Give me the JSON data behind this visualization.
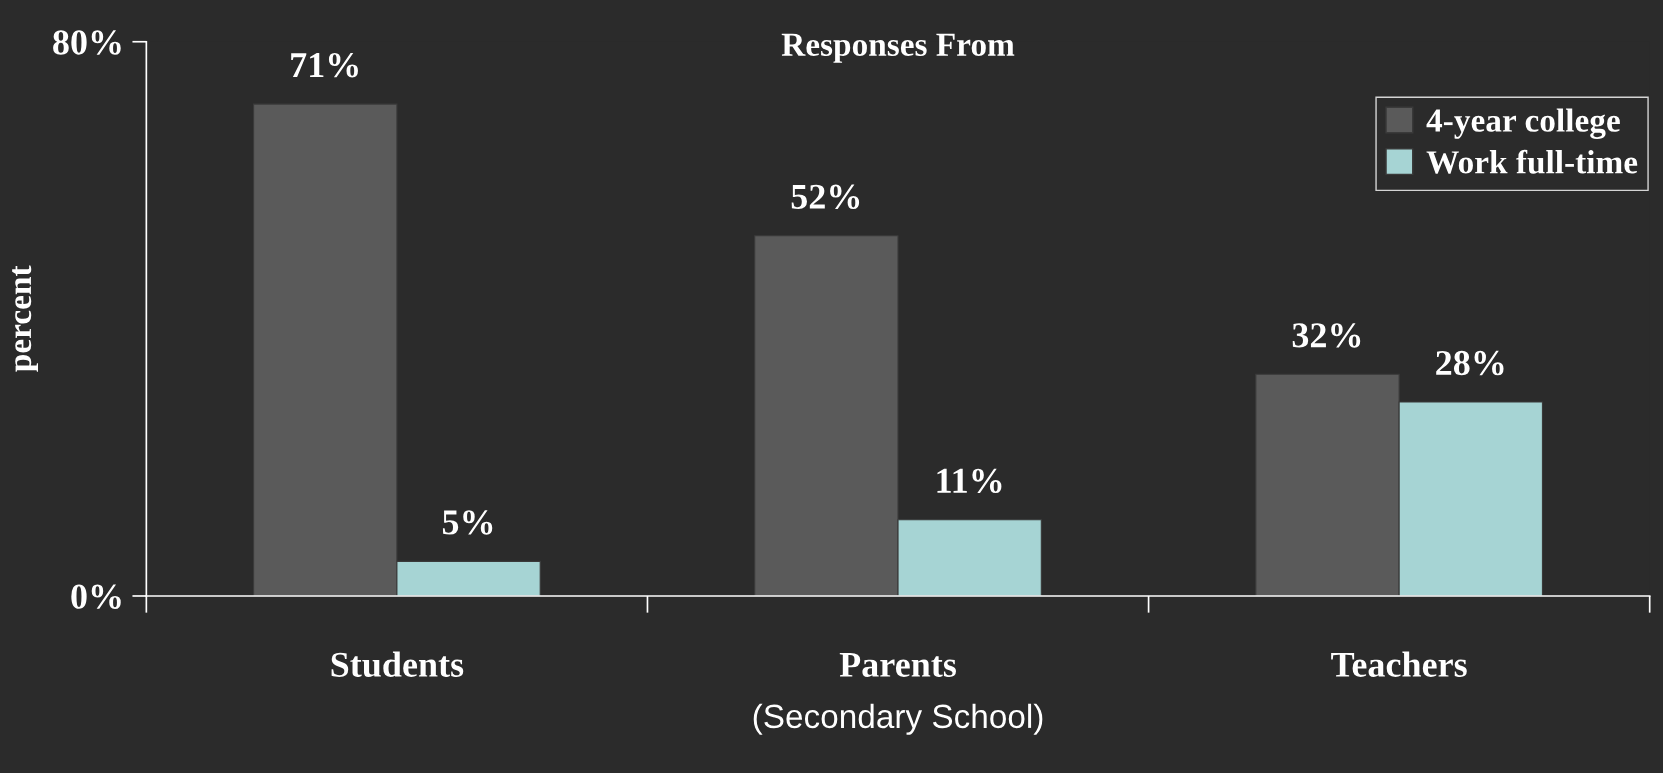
{
  "chart_data": {
    "type": "bar",
    "title": "Responses From",
    "xlabel": "(Secondary School)",
    "ylabel": "percent",
    "categories": [
      "Students",
      "Parents",
      "Teachers"
    ],
    "series": [
      {
        "name": "4-year college",
        "color": "#5a5a5a",
        "values": [
          71,
          52,
          32
        ],
        "value_labels": [
          "71%",
          "52%",
          "32%"
        ]
      },
      {
        "name": "Work full-time",
        "color": "#a6d4d4",
        "values": [
          5,
          11,
          28
        ],
        "value_labels": [
          "5%",
          "11%",
          "28%"
        ]
      }
    ],
    "ylim": [
      0,
      80
    ],
    "yticks": [
      {
        "value": 0,
        "label": "0%"
      },
      {
        "value": 80,
        "label": "80%"
      }
    ],
    "grid": false,
    "legend": "top right"
  }
}
